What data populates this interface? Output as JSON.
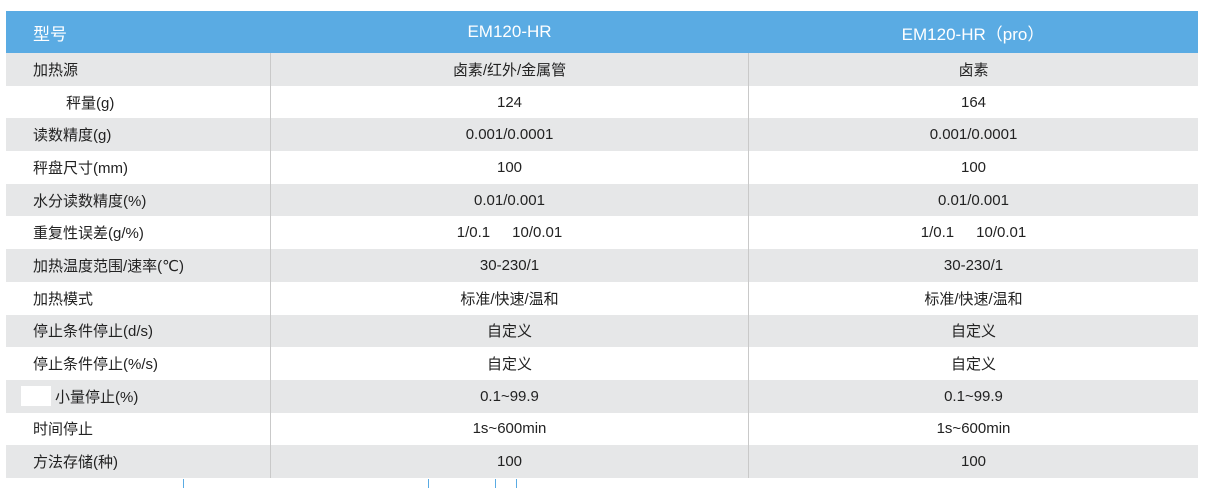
{
  "header": {
    "col1": "型号",
    "col2": "EM120-HR",
    "col3": "EM120-HR（pro）"
  },
  "rows": [
    {
      "label": "加热源",
      "a": "卤素/红外/金属管",
      "b": "卤素"
    },
    {
      "label": "秤量(g)",
      "a": "124",
      "b": "164"
    },
    {
      "label": "读数精度(g)",
      "a": "0.001/0.0001",
      "b": "0.001/0.0001"
    },
    {
      "label": "秤盘尺寸(mm)",
      "a": "100",
      "b": "100"
    },
    {
      "label": "水分读数精度(%)",
      "a": "0.01/0.001",
      "b": "0.01/0.001"
    },
    {
      "label": "重复性误差(g/%)",
      "a1": "1/0.1",
      "a2": "10/0.01",
      "b1": "1/0.1",
      "b2": "10/0.01"
    },
    {
      "label": "加热温度范围/速率(℃)",
      "a": "30-230/1",
      "b": "30-230/1"
    },
    {
      "label": "加热模式",
      "a": "标准/快速/温和",
      "b": "标准/快速/温和"
    },
    {
      "label": "停止条件停止(d/s)",
      "a": "自定义",
      "b": "自定义"
    },
    {
      "label": "停止条件停止(%/s)",
      "a": "自定义",
      "b": "自定义"
    },
    {
      "label": "小量停止(%)",
      "a": "0.1~99.9",
      "b": "0.1~99.9"
    },
    {
      "label": "时间停止",
      "a": "1s~600min",
      "b": "1s~600min"
    },
    {
      "label": "方法存储(种)",
      "a": "100",
      "b": "100"
    }
  ],
  "colors": {
    "header": "#5aabe3",
    "stripe": "#e6e7e8"
  }
}
